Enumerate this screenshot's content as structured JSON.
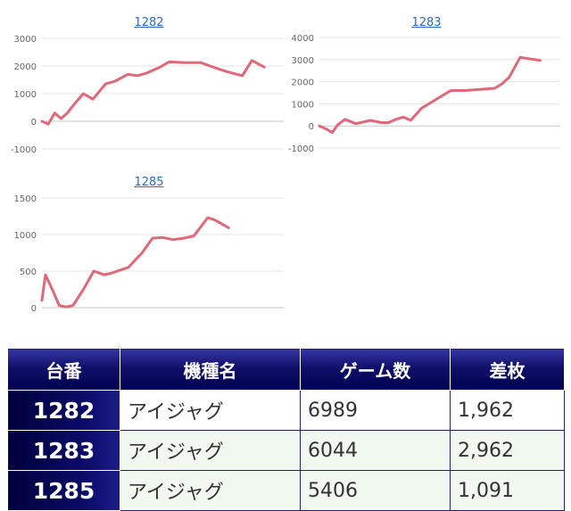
{
  "chart_data": [
    {
      "type": "line",
      "title": "1282",
      "color": "#e06878",
      "ylim": [
        -1000,
        3000
      ],
      "yticks": [
        3000,
        2000,
        1000,
        0,
        -1000
      ],
      "x": [
        0,
        200,
        400,
        600,
        800,
        1000,
        1300,
        1600,
        2000,
        2300,
        2700,
        3000,
        3300,
        3700,
        4000,
        4500,
        5000,
        5400,
        5800,
        6300,
        6600,
        6989
      ],
      "y": [
        0,
        -100,
        300,
        100,
        300,
        600,
        1000,
        800,
        1350,
        1450,
        1700,
        1650,
        1750,
        1950,
        2150,
        2120,
        2120,
        1950,
        1800,
        1650,
        2200,
        1962
      ]
    },
    {
      "type": "line",
      "title": "1283",
      "color": "#e06878",
      "ylim": [
        -1000,
        4000
      ],
      "yticks": [
        4000,
        3000,
        2000,
        1000,
        0,
        -1000
      ],
      "x": [
        0,
        200,
        350,
        500,
        700,
        1000,
        1400,
        1700,
        1900,
        2100,
        2300,
        2500,
        2800,
        3200,
        3600,
        4000,
        4400,
        4800,
        5000,
        5200,
        5500,
        6044
      ],
      "y": [
        0,
        -150,
        -300,
        50,
        300,
        100,
        250,
        150,
        150,
        300,
        400,
        250,
        800,
        1200,
        1600,
        1600,
        1650,
        1700,
        1900,
        2200,
        3100,
        2962
      ]
    },
    {
      "type": "line",
      "title": "1285",
      "color": "#e06878",
      "ylim": [
        0,
        1500
      ],
      "yticks": [
        1500,
        1000,
        500,
        0
      ],
      "x": [
        0,
        100,
        300,
        500,
        700,
        900,
        1200,
        1500,
        1800,
        2000,
        2300,
        2500,
        2900,
        3200,
        3500,
        3800,
        4100,
        4400,
        4800,
        5000,
        5406
      ],
      "y": [
        100,
        450,
        250,
        30,
        10,
        30,
        250,
        500,
        450,
        470,
        520,
        550,
        750,
        950,
        960,
        930,
        950,
        980,
        1230,
        1200,
        1091
      ]
    }
  ],
  "table": {
    "headers": [
      "台番",
      "機種名",
      "ゲーム数",
      "差枚"
    ],
    "rows": [
      [
        "1282",
        "アイジャグ",
        "6989",
        "1,962"
      ],
      [
        "1283",
        "アイジャグ",
        "6044",
        "2,962"
      ],
      [
        "1285",
        "アイジャグ",
        "5406",
        "1,091"
      ]
    ]
  }
}
